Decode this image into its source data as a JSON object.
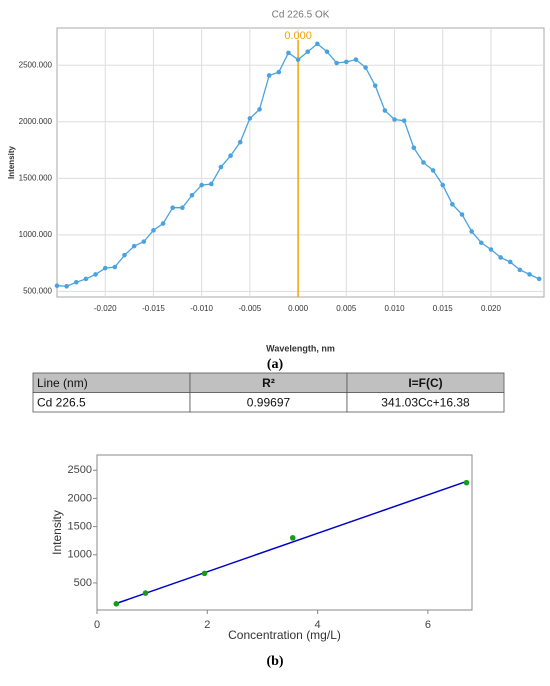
{
  "chart_data": [
    {
      "type": "line",
      "title": "Cd 226.5 OK",
      "xlabel": "Wavelength, nm",
      "ylabel": "Intensity",
      "x": [
        -0.025,
        -0.024,
        -0.023,
        -0.022,
        -0.021,
        -0.02,
        -0.019,
        -0.018,
        -0.017,
        -0.016,
        -0.015,
        -0.014,
        -0.013,
        -0.012,
        -0.011,
        -0.01,
        -0.009,
        -0.008,
        -0.007,
        -0.006,
        -0.005,
        -0.004,
        -0.003,
        -0.002,
        -0.001,
        0,
        0.001,
        0.002,
        0.003,
        0.004,
        0.005,
        0.006,
        0.007,
        0.008,
        0.009,
        0.01,
        0.011,
        0.012,
        0.013,
        0.014,
        0.015,
        0.016,
        0.017,
        0.018,
        0.019,
        0.02,
        0.021,
        0.022,
        0.023,
        0.024,
        0.025
      ],
      "series": [
        {
          "color": "#4aa3df",
          "values": [
            550,
            545,
            580,
            610,
            650,
            705,
            715,
            820,
            900,
            940,
            1040,
            1100,
            1240,
            1240,
            1350,
            1440,
            1450,
            1600,
            1700,
            1820,
            2030,
            2110,
            2410,
            2440,
            2610,
            2550,
            2620,
            2690,
            2620,
            2520,
            2530,
            2550,
            2480,
            2320,
            2100,
            2020,
            2010,
            1770,
            1640,
            1570,
            1440,
            1270,
            1180,
            1030,
            930,
            870,
            800,
            760,
            690,
            650,
            610
          ]
        }
      ],
      "annotation": {
        "x": 0,
        "label": "0.000",
        "color": "#f0a30a"
      },
      "xlim": [
        -0.025,
        0.0255
      ],
      "ylim": [
        450,
        2830
      ],
      "xticks": [
        {
          "value": -0.02,
          "label": "-0.020"
        },
        {
          "value": -0.015,
          "label": "-0.015"
        },
        {
          "value": -0.01,
          "label": "-0.010"
        },
        {
          "value": -0.005,
          "label": "-0.005"
        },
        {
          "value": 0,
          "label": "0.000"
        },
        {
          "value": 0.005,
          "label": "0.005"
        },
        {
          "value": 0.01,
          "label": "0.010"
        },
        {
          "value": 0.015,
          "label": "0.015"
        },
        {
          "value": 0.02,
          "label": "0.020"
        }
      ],
      "yticks": [
        {
          "value": 500,
          "label": "500.000"
        },
        {
          "value": 1000,
          "label": "1000.000"
        },
        {
          "value": 1500,
          "label": "1500.000"
        },
        {
          "value": 2000,
          "label": "2000.000"
        },
        {
          "value": 2500,
          "label": "2500.000"
        }
      ],
      "grid": true
    },
    {
      "type": "scatter",
      "xlabel": "Concentration (mg/L)",
      "ylabel": "Intensity",
      "x": [
        0.35,
        0.88,
        1.95,
        3.55,
        6.7
      ],
      "series": [
        {
          "color": "#1a9a1a",
          "values": [
            130,
            320,
            670,
            1300,
            2280
          ]
        }
      ],
      "fit": {
        "color": "#0000cc",
        "x": [
          0.33,
          6.72
        ],
        "values": [
          129,
          2308
        ]
      },
      "xlim": [
        0,
        6.8
      ],
      "ylim": [
        20,
        2770
      ],
      "xticks": [
        0,
        2,
        4,
        6
      ],
      "yticks": [
        500,
        1000,
        1500,
        2000,
        2500
      ],
      "grid": false
    }
  ],
  "captions": [
    "(a)",
    "(b)"
  ],
  "table": {
    "header": [
      "Line (nm)",
      "R²",
      "I=F(C)"
    ],
    "rows": [
      [
        "Cd 226.5",
        "0.99697",
        "341.03Cc+16.38"
      ]
    ]
  }
}
